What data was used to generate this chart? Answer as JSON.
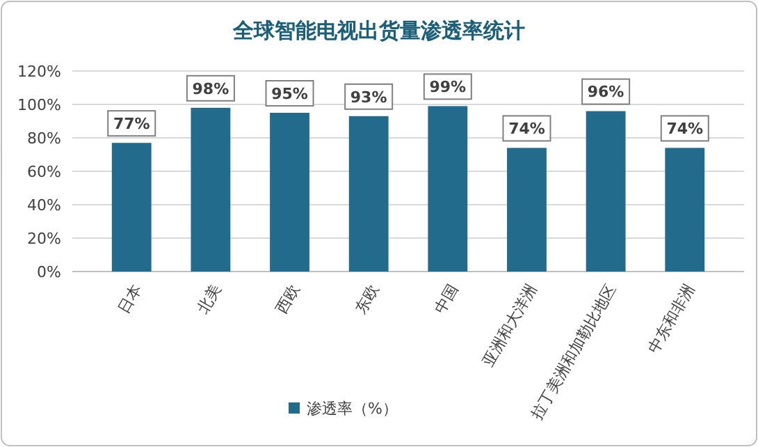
{
  "chart_data": {
    "type": "bar",
    "title": "全球智能电视出货量渗透率统计",
    "categories": [
      "日本",
      "北美",
      "西欧",
      "东欧",
      "中国",
      "亚洲和大洋洲",
      "拉丁美洲和加勒比地区",
      "中东和非洲"
    ],
    "series": [
      {
        "name": "渗透率（%）",
        "color": "#226b8c",
        "values": [
          77,
          98,
          95,
          93,
          99,
          74,
          96,
          74
        ]
      }
    ],
    "value_labels": [
      "77%",
      "98%",
      "95%",
      "93%",
      "99%",
      "74%",
      "96%",
      "74%"
    ],
    "ylim": [
      0,
      120
    ],
    "yticks": [
      {
        "value": 0,
        "label": "0%"
      },
      {
        "value": 20,
        "label": "20%"
      },
      {
        "value": 40,
        "label": "40%"
      },
      {
        "value": 60,
        "label": "60%"
      },
      {
        "value": 80,
        "label": "80%"
      },
      {
        "value": 100,
        "label": "100%"
      },
      {
        "value": 120,
        "label": "120%"
      }
    ],
    "grid": "y",
    "legend": "bottom"
  }
}
